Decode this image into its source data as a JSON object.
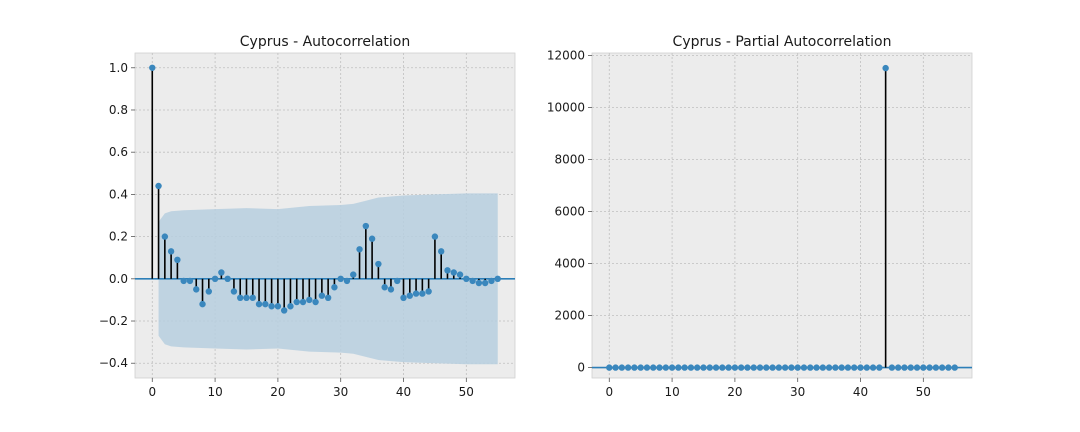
{
  "chart_data": [
    {
      "type": "stem",
      "title": "Cyprus - Autocorrelation",
      "xlim": [
        -2.75,
        57.75
      ],
      "ylim": [
        -0.47,
        1.07
      ],
      "xticks": [
        0,
        10,
        20,
        30,
        40,
        50
      ],
      "yticks": [
        -0.4,
        -0.2,
        0.0,
        0.2,
        0.4,
        0.6,
        0.8,
        1.0
      ],
      "ytick_labels": [
        "−0.4",
        "−0.2",
        "0.0",
        "0.2",
        "0.4",
        "0.6",
        "0.8",
        "1.0"
      ],
      "xtick_labels": [
        "0",
        "10",
        "20",
        "30",
        "40",
        "50"
      ],
      "grid": true,
      "zero_line": true,
      "confidence_band": {
        "x": [
          1,
          2,
          3,
          5,
          10,
          15,
          20,
          25,
          30,
          32,
          34,
          36,
          38,
          40,
          45,
          50,
          55
        ],
        "upper": [
          0.27,
          0.31,
          0.32,
          0.325,
          0.33,
          0.335,
          0.33,
          0.345,
          0.35,
          0.355,
          0.37,
          0.385,
          0.39,
          0.395,
          0.4,
          0.405,
          0.405
        ],
        "lower": [
          -0.27,
          -0.31,
          -0.32,
          -0.325,
          -0.33,
          -0.335,
          -0.33,
          -0.345,
          -0.35,
          -0.355,
          -0.37,
          -0.385,
          -0.39,
          -0.395,
          -0.4,
          -0.405,
          -0.405
        ]
      },
      "lags": [
        0,
        1,
        2,
        3,
        4,
        5,
        6,
        7,
        8,
        9,
        10,
        11,
        12,
        13,
        14,
        15,
        16,
        17,
        18,
        19,
        20,
        21,
        22,
        23,
        24,
        25,
        26,
        27,
        28,
        29,
        30,
        31,
        32,
        33,
        34,
        35,
        36,
        37,
        38,
        39,
        40,
        41,
        42,
        43,
        44,
        45,
        46,
        47,
        48,
        49,
        50,
        51,
        52,
        53,
        54,
        55
      ],
      "values": [
        1.0,
        0.44,
        0.2,
        0.13,
        0.09,
        -0.01,
        -0.01,
        -0.05,
        -0.12,
        -0.06,
        0.0,
        0.03,
        0.0,
        -0.06,
        -0.09,
        -0.09,
        -0.09,
        -0.12,
        -0.12,
        -0.13,
        -0.13,
        -0.15,
        -0.13,
        -0.11,
        -0.11,
        -0.1,
        -0.11,
        -0.08,
        -0.09,
        -0.04,
        0.0,
        -0.01,
        0.02,
        0.14,
        0.25,
        0.19,
        0.07,
        -0.04,
        -0.05,
        -0.01,
        -0.09,
        -0.08,
        -0.07,
        -0.07,
        -0.06,
        0.2,
        0.13,
        0.04,
        0.03,
        0.02,
        0.0,
        -0.01,
        -0.02,
        -0.02,
        -0.01,
        0.0
      ]
    },
    {
      "type": "stem",
      "title": "Cyprus - Partial Autocorrelation",
      "xlim": [
        -2.75,
        57.75
      ],
      "ylim": [
        -400,
        12100
      ],
      "xticks": [
        0,
        10,
        20,
        30,
        40,
        50
      ],
      "yticks": [
        0,
        2000,
        4000,
        6000,
        8000,
        10000,
        12000
      ],
      "ytick_labels": [
        "0",
        "2000",
        "4000",
        "6000",
        "8000",
        "10000",
        "12000"
      ],
      "xtick_labels": [
        "0",
        "10",
        "20",
        "30",
        "40",
        "50"
      ],
      "grid": true,
      "zero_line": true,
      "lags": [
        0,
        1,
        2,
        3,
        4,
        5,
        6,
        7,
        8,
        9,
        10,
        11,
        12,
        13,
        14,
        15,
        16,
        17,
        18,
        19,
        20,
        21,
        22,
        23,
        24,
        25,
        26,
        27,
        28,
        29,
        30,
        31,
        32,
        33,
        34,
        35,
        36,
        37,
        38,
        39,
        40,
        41,
        42,
        43,
        44,
        45,
        46,
        47,
        48,
        49,
        50,
        51,
        52,
        53,
        54,
        55
      ],
      "values": [
        0,
        0,
        0,
        0,
        0,
        0,
        0,
        0,
        0,
        0,
        0,
        0,
        0,
        0,
        0,
        0,
        0,
        0,
        0,
        0,
        0,
        0,
        0,
        0,
        0,
        0,
        0,
        0,
        0,
        0,
        0,
        0,
        0,
        0,
        0,
        0,
        0,
        0,
        0,
        0,
        0,
        0,
        0,
        0,
        11520,
        0,
        0,
        0,
        0,
        0,
        0,
        0,
        0,
        0,
        0,
        0
      ]
    }
  ],
  "style": {
    "axes_bg": "#ececec",
    "grid_color": "#bfbfbf",
    "marker_color": "#3a87bd",
    "stem_color": "#000000",
    "zero_line_color": "#2d7fb8",
    "band_color": "#b7cfdf"
  }
}
